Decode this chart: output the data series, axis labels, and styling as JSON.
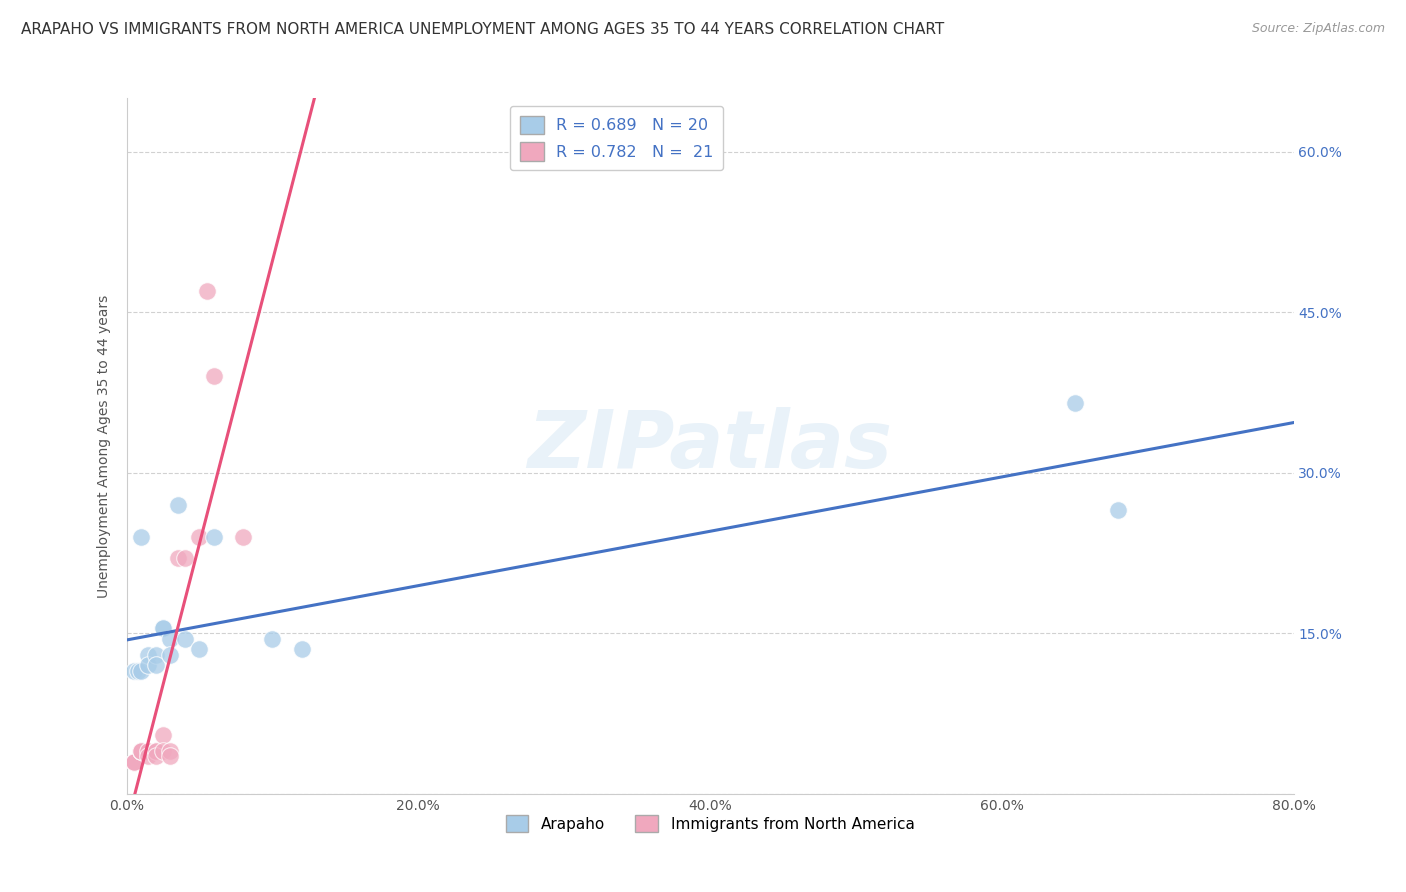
{
  "title": "ARAPAHO VS IMMIGRANTS FROM NORTH AMERICA UNEMPLOYMENT AMONG AGES 35 TO 44 YEARS CORRELATION CHART",
  "source": "Source: ZipAtlas.com",
  "ylabel": "Unemployment Among Ages 35 to 44 years",
  "xlim": [
    0.0,
    0.8
  ],
  "ylim": [
    0.0,
    0.65
  ],
  "xticks": [
    0.0,
    0.2,
    0.4,
    0.6,
    0.8
  ],
  "yticks": [
    0.0,
    0.15,
    0.3,
    0.45,
    0.6
  ],
  "xtick_labels": [
    "0.0%",
    "20.0%",
    "40.0%",
    "60.0%",
    "80.0%"
  ],
  "ytick_labels": [
    "",
    "15.0%",
    "30.0%",
    "45.0%",
    "60.0%"
  ],
  "arapaho_color": "#a8cce8",
  "immigrants_color": "#f0a8be",
  "arapaho_line_color": "#4472c4",
  "immigrants_line_color": "#e8507a",
  "watermark_text": "ZIPatlas",
  "arapaho_x": [
    0.005,
    0.008,
    0.01,
    0.01,
    0.015,
    0.015,
    0.02,
    0.02,
    0.025,
    0.025,
    0.03,
    0.03,
    0.035,
    0.04,
    0.05,
    0.06,
    0.1,
    0.12,
    0.65,
    0.68
  ],
  "arapaho_y": [
    0.115,
    0.115,
    0.24,
    0.115,
    0.13,
    0.12,
    0.13,
    0.12,
    0.155,
    0.155,
    0.145,
    0.13,
    0.27,
    0.145,
    0.135,
    0.24,
    0.145,
    0.135,
    0.365,
    0.265
  ],
  "immigrants_x": [
    0.005,
    0.005,
    0.005,
    0.01,
    0.01,
    0.01,
    0.015,
    0.015,
    0.02,
    0.02,
    0.02,
    0.025,
    0.025,
    0.03,
    0.03,
    0.035,
    0.04,
    0.05,
    0.055,
    0.06,
    0.08
  ],
  "immigrants_y": [
    0.03,
    0.03,
    0.03,
    0.04,
    0.04,
    0.04,
    0.04,
    0.035,
    0.04,
    0.04,
    0.035,
    0.055,
    0.04,
    0.04,
    0.035,
    0.22,
    0.22,
    0.24,
    0.47,
    0.39,
    0.24
  ],
  "background_color": "#ffffff",
  "grid_color": "#cccccc",
  "title_fontsize": 11,
  "axis_fontsize": 10,
  "tick_fontsize": 10
}
